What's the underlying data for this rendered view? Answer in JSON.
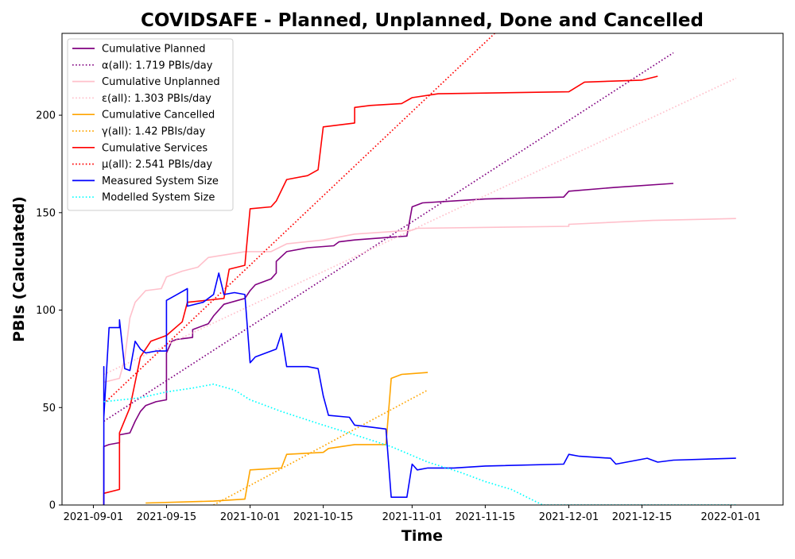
{
  "chart_data": {
    "type": "line",
    "title": "COVIDSAFE - Planned, Unplanned, Done  and Cancelled",
    "xlabel": "Time",
    "ylabel": "PBIs (Calculated)",
    "xlim": [
      "2021-08-26",
      "2022-01-11"
    ],
    "ylim": [
      0,
      242
    ],
    "x_ticks": [
      "2021-09-01",
      "2021-09-15",
      "2021-10-01",
      "2021-10-15",
      "2021-11-01",
      "2021-11-15",
      "2021-12-01",
      "2021-12-15",
      "2022-01-01"
    ],
    "y_ticks": [
      0,
      50,
      100,
      150,
      200
    ],
    "grid": false,
    "legend_position": "upper-left",
    "series": [
      {
        "name": "Cumulative Planned",
        "color": "#800080",
        "style": "solid",
        "points": [
          [
            "2021-09-03",
            0
          ],
          [
            "2021-09-03",
            16
          ],
          [
            "2021-09-03",
            30
          ],
          [
            "2021-09-04",
            31
          ],
          [
            "2021-09-06",
            32
          ],
          [
            "2021-09-06",
            36
          ],
          [
            "2021-09-08",
            37
          ],
          [
            "2021-09-09",
            43
          ],
          [
            "2021-09-10",
            48
          ],
          [
            "2021-09-11",
            51
          ],
          [
            "2021-09-13",
            53
          ],
          [
            "2021-09-15",
            54
          ],
          [
            "2021-09-15",
            78
          ],
          [
            "2021-09-16",
            84
          ],
          [
            "2021-09-17",
            85
          ],
          [
            "2021-09-20",
            86
          ],
          [
            "2021-09-20",
            90
          ],
          [
            "2021-09-23",
            93
          ],
          [
            "2021-09-24",
            97
          ],
          [
            "2021-09-26",
            103
          ],
          [
            "2021-09-30",
            106
          ],
          [
            "2021-10-01",
            110
          ],
          [
            "2021-10-02",
            113
          ],
          [
            "2021-10-05",
            116
          ],
          [
            "2021-10-06",
            119
          ],
          [
            "2021-10-06",
            125
          ],
          [
            "2021-10-08",
            130
          ],
          [
            "2021-10-12",
            132
          ],
          [
            "2021-10-17",
            133
          ],
          [
            "2021-10-18",
            135
          ],
          [
            "2021-10-21",
            136
          ],
          [
            "2021-10-26",
            137
          ],
          [
            "2021-10-31",
            138
          ],
          [
            "2021-11-01",
            153
          ],
          [
            "2021-11-03",
            155
          ],
          [
            "2021-11-15",
            157
          ],
          [
            "2021-11-30",
            158
          ],
          [
            "2021-12-01",
            161
          ],
          [
            "2021-12-10",
            163
          ],
          [
            "2021-12-21",
            165
          ]
        ]
      },
      {
        "name": "α(all): 1.719 PBIs/day",
        "color": "#800080",
        "style": "dotted",
        "points": [
          [
            "2021-09-03",
            43
          ],
          [
            "2021-12-21",
            232
          ]
        ]
      },
      {
        "name": "Cumulative Unplanned",
        "color": "#ffc0cb",
        "style": "solid",
        "points": [
          [
            "2021-09-03",
            63
          ],
          [
            "2021-09-06",
            65
          ],
          [
            "2021-09-07",
            75
          ],
          [
            "2021-09-08",
            96
          ],
          [
            "2021-09-09",
            104
          ],
          [
            "2021-09-11",
            110
          ],
          [
            "2021-09-14",
            111
          ],
          [
            "2021-09-15",
            117
          ],
          [
            "2021-09-18",
            120
          ],
          [
            "2021-09-21",
            122
          ],
          [
            "2021-09-23",
            127
          ],
          [
            "2021-09-30",
            130
          ],
          [
            "2021-10-05",
            130
          ],
          [
            "2021-10-08",
            134
          ],
          [
            "2021-10-15",
            136
          ],
          [
            "2021-10-19",
            138
          ],
          [
            "2021-10-21",
            139
          ],
          [
            "2021-11-01",
            141
          ],
          [
            "2021-11-02",
            142
          ],
          [
            "2021-12-01",
            143
          ],
          [
            "2021-12-01",
            144
          ],
          [
            "2021-12-17",
            146
          ],
          [
            "2022-01-02",
            147
          ]
        ]
      },
      {
        "name": "ε(all): 1.303 PBIs/day",
        "color": "#ffc0cb",
        "style": "dotted",
        "points": [
          [
            "2021-09-03",
            67
          ],
          [
            "2022-01-02",
            219
          ]
        ]
      },
      {
        "name": "Cumulative Cancelled",
        "color": "#ffa500",
        "style": "solid",
        "points": [
          [
            "2021-09-11",
            1
          ],
          [
            "2021-09-24",
            2
          ],
          [
            "2021-09-30",
            3
          ],
          [
            "2021-10-01",
            18
          ],
          [
            "2021-10-07",
            19
          ],
          [
            "2021-10-08",
            26
          ],
          [
            "2021-10-15",
            27
          ],
          [
            "2021-10-16",
            29
          ],
          [
            "2021-10-21",
            31
          ],
          [
            "2021-10-27",
            31
          ],
          [
            "2021-10-28",
            65
          ],
          [
            "2021-10-30",
            67
          ],
          [
            "2021-11-04",
            68
          ]
        ]
      },
      {
        "name": "γ(all): 1.42 PBIs/day",
        "color": "#ffa500",
        "style": "dotted",
        "points": [
          [
            "2021-09-24",
            0
          ],
          [
            "2021-11-04",
            59
          ]
        ]
      },
      {
        "name": "Cumulative Services",
        "color": "#ff0000",
        "style": "solid",
        "points": [
          [
            "2021-09-03",
            0
          ],
          [
            "2021-09-03",
            6
          ],
          [
            "2021-09-06",
            8
          ],
          [
            "2021-09-06",
            37
          ],
          [
            "2021-09-08",
            50
          ],
          [
            "2021-09-10",
            76
          ],
          [
            "2021-09-12",
            84
          ],
          [
            "2021-09-15",
            87
          ],
          [
            "2021-09-18",
            94
          ],
          [
            "2021-09-19",
            104
          ],
          [
            "2021-09-26",
            106
          ],
          [
            "2021-09-27",
            121
          ],
          [
            "2021-09-30",
            123
          ],
          [
            "2021-10-01",
            152
          ],
          [
            "2021-10-05",
            153
          ],
          [
            "2021-10-06",
            156
          ],
          [
            "2021-10-08",
            167
          ],
          [
            "2021-10-12",
            169
          ],
          [
            "2021-10-14",
            172
          ],
          [
            "2021-10-15",
            194
          ],
          [
            "2021-10-21",
            196
          ],
          [
            "2021-10-21",
            204
          ],
          [
            "2021-10-24",
            205
          ],
          [
            "2021-10-30",
            206
          ],
          [
            "2021-11-01",
            209
          ],
          [
            "2021-11-06",
            211
          ],
          [
            "2021-12-01",
            212
          ],
          [
            "2021-12-04",
            217
          ],
          [
            "2021-12-15",
            218
          ],
          [
            "2021-12-18",
            220
          ]
        ]
      },
      {
        "name": "μ(all): 2.541 PBIs/day",
        "color": "#ff0000",
        "style": "dotted",
        "points": [
          [
            "2021-09-03",
            52
          ],
          [
            "2021-11-18",
            245
          ]
        ]
      },
      {
        "name": "Measured System Size",
        "color": "#0000ff",
        "style": "solid",
        "points": [
          [
            "2021-09-03",
            0
          ],
          [
            "2021-09-03",
            71
          ],
          [
            "2021-09-03",
            45
          ],
          [
            "2021-09-04",
            91
          ],
          [
            "2021-09-06",
            91
          ],
          [
            "2021-09-06",
            95
          ],
          [
            "2021-09-07",
            70
          ],
          [
            "2021-09-08",
            69
          ],
          [
            "2021-09-09",
            84
          ],
          [
            "2021-09-10",
            80
          ],
          [
            "2021-09-11",
            78
          ],
          [
            "2021-09-13",
            79
          ],
          [
            "2021-09-15",
            79
          ],
          [
            "2021-09-15",
            105
          ],
          [
            "2021-09-17",
            108
          ],
          [
            "2021-09-19",
            111
          ],
          [
            "2021-09-19",
            102
          ],
          [
            "2021-09-22",
            104
          ],
          [
            "2021-09-24",
            108
          ],
          [
            "2021-09-25",
            119
          ],
          [
            "2021-09-26",
            108
          ],
          [
            "2021-09-28",
            109
          ],
          [
            "2021-09-30",
            108
          ],
          [
            "2021-10-01",
            73
          ],
          [
            "2021-10-02",
            76
          ],
          [
            "2021-10-06",
            80
          ],
          [
            "2021-10-07",
            88
          ],
          [
            "2021-10-08",
            71
          ],
          [
            "2021-10-12",
            71
          ],
          [
            "2021-10-14",
            70
          ],
          [
            "2021-10-15",
            56
          ],
          [
            "2021-10-16",
            46
          ],
          [
            "2021-10-20",
            45
          ],
          [
            "2021-10-21",
            41
          ],
          [
            "2021-10-24",
            40
          ],
          [
            "2021-10-27",
            39
          ],
          [
            "2021-10-28",
            4
          ],
          [
            "2021-10-31",
            4
          ],
          [
            "2021-11-01",
            21
          ],
          [
            "2021-11-02",
            18
          ],
          [
            "2021-11-04",
            19
          ],
          [
            "2021-11-09",
            19
          ],
          [
            "2021-11-15",
            20
          ],
          [
            "2021-11-30",
            21
          ],
          [
            "2021-12-01",
            26
          ],
          [
            "2021-12-03",
            25
          ],
          [
            "2021-12-09",
            24
          ],
          [
            "2021-12-10",
            21
          ],
          [
            "2021-12-16",
            24
          ],
          [
            "2021-12-18",
            22
          ],
          [
            "2021-12-21",
            23
          ],
          [
            "2022-01-02",
            24
          ]
        ]
      },
      {
        "name": "Modelled System Size",
        "color": "#00ffff",
        "style": "dotted",
        "points": [
          [
            "2021-09-03",
            53
          ],
          [
            "2021-09-10",
            55
          ],
          [
            "2021-09-15",
            58
          ],
          [
            "2021-09-20",
            60
          ],
          [
            "2021-09-24",
            62
          ],
          [
            "2021-09-28",
            59
          ],
          [
            "2021-10-01",
            54
          ],
          [
            "2021-10-07",
            48
          ],
          [
            "2021-10-15",
            41
          ],
          [
            "2021-10-21",
            36
          ],
          [
            "2021-10-28",
            30
          ],
          [
            "2021-11-04",
            22
          ],
          [
            "2021-11-10",
            17
          ],
          [
            "2021-11-15",
            12
          ],
          [
            "2021-11-20",
            8
          ],
          [
            "2021-11-26",
            0
          ],
          [
            "2022-01-02",
            0
          ]
        ]
      }
    ]
  }
}
